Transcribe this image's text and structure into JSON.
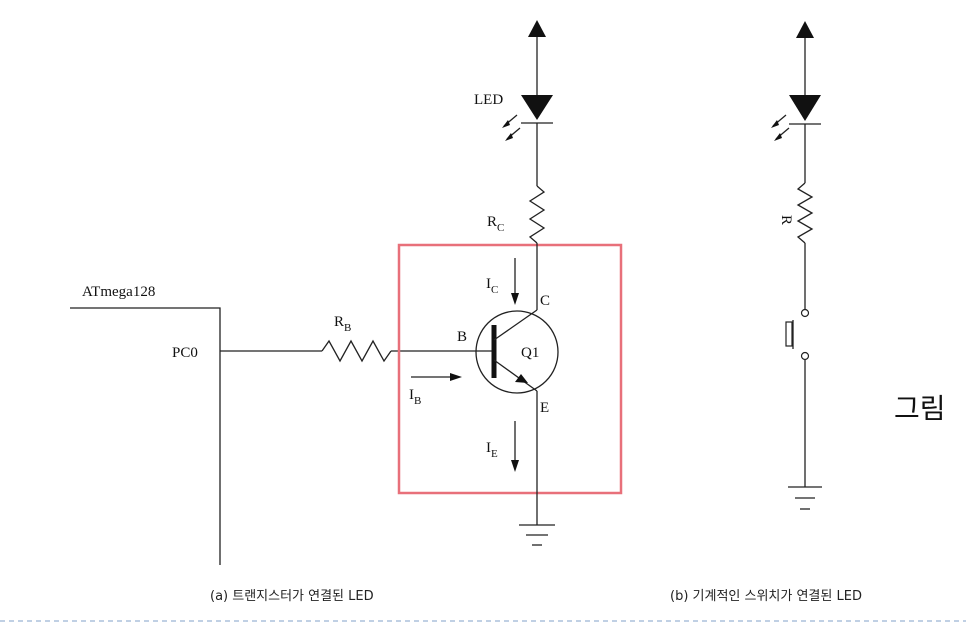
{
  "diagram_a": {
    "mcu": "ATmega128",
    "pin": "PC0",
    "rb": {
      "main": "R",
      "sub": "B"
    },
    "rc": {
      "main": "R",
      "sub": "C"
    },
    "led": "LED",
    "ic": {
      "main": "I",
      "sub": "C"
    },
    "ib": {
      "main": "I",
      "sub": "B"
    },
    "ie": {
      "main": "I",
      "sub": "E"
    },
    "base": "B",
    "collector": "C",
    "emitter": "E",
    "transistor": "Q1",
    "caption": "(a) 트랜지스터가 연결된 LED",
    "highlight_color": "#e8707a"
  },
  "diagram_b": {
    "resistor": "R",
    "caption": "(b) 기계적인 스위치가 연결된 LED"
  },
  "side_text": "그림",
  "divider_color": "#9ab4d4"
}
